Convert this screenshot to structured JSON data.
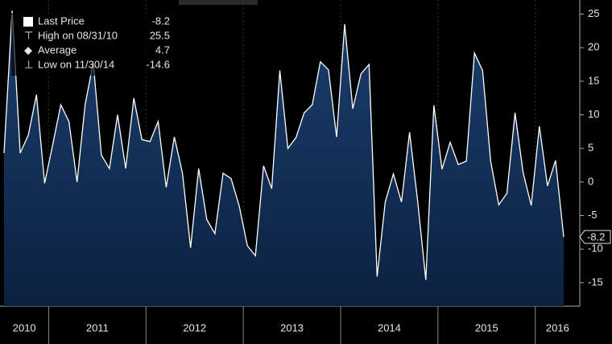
{
  "chart_data": {
    "type": "area",
    "series": [
      {
        "name": "Last Price",
        "color": "#ffffff",
        "values": [
          4.3,
          25.5,
          4.3,
          7,
          13,
          -0.2,
          5.5,
          11.5,
          9,
          0,
          11.5,
          17.8,
          4,
          2,
          10,
          2,
          12.5,
          6.3,
          6,
          9,
          -0.8,
          6.7,
          1.3,
          -9.8,
          2,
          -5.6,
          -7.7,
          1.3,
          0.5,
          -3.6,
          -9.5,
          -11,
          2.4,
          -1,
          16.6,
          5,
          6.6,
          10.3,
          11.5,
          17.9,
          16.7,
          6.7,
          23.5,
          10.9,
          16.1,
          17.5,
          -14.1,
          -3,
          1.2,
          -3,
          7.4,
          -2.9,
          -14.6,
          11.4,
          1.9,
          5.9,
          2.6,
          3.1,
          19.2,
          16.6,
          3.1,
          -3.4,
          -1.7,
          10.3,
          1.4,
          -3.5,
          8.3,
          -0.6,
          3.2,
          -8.2
        ]
      }
    ],
    "categories": [
      null,
      null,
      null,
      null,
      null,
      null,
      null,
      null,
      null,
      null,
      null,
      null,
      null,
      null,
      null,
      null,
      null,
      null,
      null,
      null,
      null,
      null,
      null,
      null,
      null,
      null,
      null,
      null,
      null,
      null,
      null,
      null,
      null,
      null,
      null,
      null,
      null,
      null,
      null,
      null,
      null,
      null,
      null,
      null,
      null,
      null,
      null,
      null,
      null,
      null,
      null,
      null,
      null,
      null,
      null,
      null,
      null,
      null,
      null,
      null,
      null,
      null,
      null,
      null,
      null,
      null,
      null,
      null,
      null,
      null
    ],
    "year_labels": [
      "2010",
      "2011",
      "2012",
      "2013",
      "2014",
      "2015",
      "2016"
    ],
    "legend": [
      {
        "label": "Last Price",
        "value": -8.2
      },
      {
        "label": "High on 08/31/10",
        "value": 25.5
      },
      {
        "label": "Average",
        "value": 4.7
      },
      {
        "label": "Low on 11/30/14",
        "value": -14.6
      }
    ],
    "ylim": [
      -18.5,
      27.1
    ],
    "yticks": [
      25,
      20,
      15,
      10,
      5,
      0,
      -5,
      -10,
      -15
    ]
  }
}
